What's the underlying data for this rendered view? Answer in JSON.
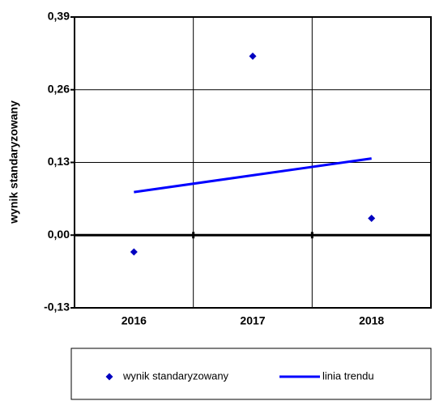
{
  "chart_data": {
    "type": "combo",
    "y_label": "wynik standaryzowany",
    "categories": [
      "2016",
      "2017",
      "2018"
    ],
    "series": [
      {
        "name": "wynik standaryzowany",
        "type": "scatter",
        "color": "#0000c0",
        "values": [
          -0.03,
          0.32,
          0.03
        ]
      },
      {
        "name": "linia trendu",
        "type": "line",
        "color": "#0000ff",
        "values": [
          0.077,
          0.107,
          0.137
        ]
      }
    ],
    "ylim": [
      -0.13,
      0.39
    ],
    "yticks": [
      {
        "value": -0.13,
        "label": "-0,13"
      },
      {
        "value": 0,
        "label": "0,00"
      },
      {
        "value": 0.13,
        "label": "0,13"
      },
      {
        "value": 0.26,
        "label": "0,26"
      },
      {
        "value": 0.39,
        "label": "0,39"
      }
    ],
    "grid": true
  }
}
